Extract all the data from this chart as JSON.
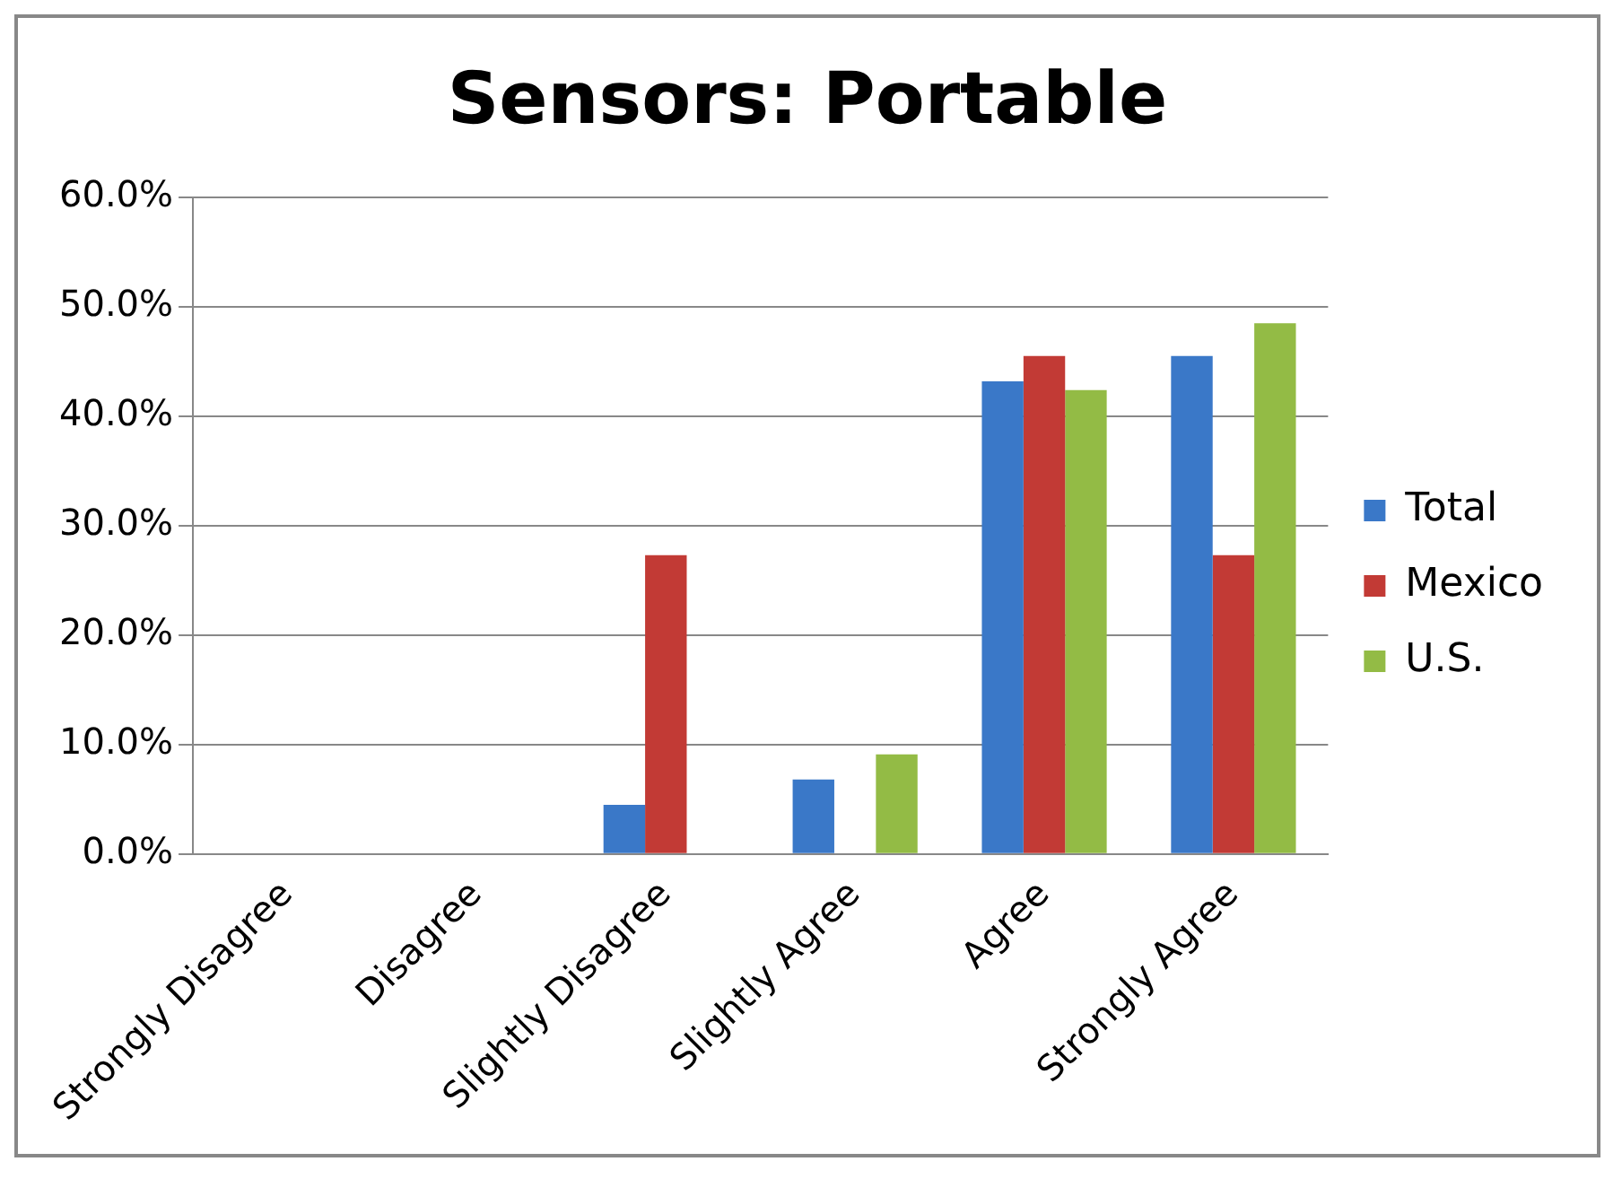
{
  "chart_data": {
    "type": "bar",
    "title": "Sensors: Portable",
    "categories": [
      "Strongly Disagree",
      "Disagree",
      "Slightly Disagree",
      "Slightly Agree",
      "Agree",
      "Strongly Agree"
    ],
    "series": [
      {
        "name": "Total",
        "color": "#3a78c8",
        "values": [
          0,
          0,
          4.5,
          6.8,
          43.2,
          45.5
        ]
      },
      {
        "name": "Mexico",
        "color": "#c23a35",
        "values": [
          0,
          0,
          27.3,
          0,
          45.5,
          27.3
        ]
      },
      {
        "name": "U.S.",
        "color": "#93bb45",
        "values": [
          0,
          0,
          0,
          9.1,
          42.4,
          48.5
        ]
      }
    ],
    "ylim": [
      0,
      60
    ],
    "yticks": [
      {
        "value": 0,
        "label": "0.0%"
      },
      {
        "value": 10,
        "label": "10.0%"
      },
      {
        "value": 20,
        "label": "20.0%"
      },
      {
        "value": 30,
        "label": "30.0%"
      },
      {
        "value": 40,
        "label": "40.0%"
      },
      {
        "value": 50,
        "label": "50.0%"
      },
      {
        "value": 60,
        "label": "60.0%"
      }
    ],
    "grid": "y",
    "legend": "right"
  }
}
